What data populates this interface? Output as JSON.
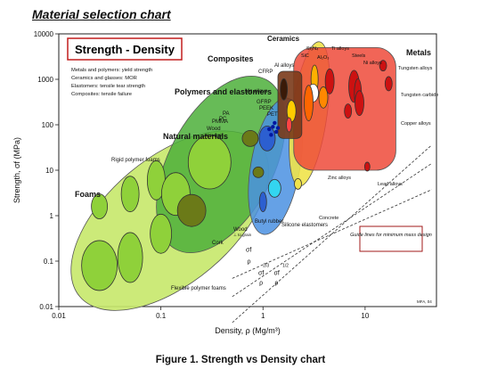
{
  "heading": "Material selection chart",
  "caption": "Figure 1. Strength vs Density chart",
  "colors": {
    "foams": "#c6e86a",
    "natural": "#4caf3a",
    "polymers": "#4a90e2",
    "composites": "#7a3a1a",
    "ceramics": "#f0e34a",
    "metals": "#ee4a3a",
    "ellipse_green": "#8fd13a",
    "ellipse_olive": "#6b7a18",
    "guide_callout_border": "#a01818"
  },
  "chart_data": {
    "type": "scatter",
    "title": "Strength - Density",
    "xlabel": "Density, ρ (Mg/m³)",
    "ylabel": "Strength, σf (MPa)",
    "xscale": "log",
    "yscale": "log",
    "xlim": [
      0.01,
      50
    ],
    "ylim": [
      0.01,
      10000
    ],
    "x_ticks": [
      "0.01",
      "0.1",
      "1",
      "10"
    ],
    "y_ticks": [
      "0.01",
      "0.1",
      "1",
      "10",
      "100",
      "1000",
      "10000"
    ],
    "legend_notes": [
      "Metals and polymers: yield strength",
      "Ceramics and glasses: MOR",
      "Elastomers: tensile tear strength",
      "Composites: tensile failure"
    ],
    "families": [
      {
        "name": "Foams",
        "density_range": [
          0.015,
          1.0
        ],
        "strength_range": [
          0.02,
          30
        ]
      },
      {
        "name": "Natural materials",
        "density_range": [
          0.1,
          1.5
        ],
        "strength_range": [
          0.3,
          600
        ]
      },
      {
        "name": "Polymers and elastomers",
        "density_range": [
          0.7,
          2.5
        ],
        "strength_range": [
          0.5,
          300
        ]
      },
      {
        "name": "Composites",
        "density_range": [
          1.4,
          2.4
        ],
        "strength_range": [
          50,
          1500
        ]
      },
      {
        "name": "Ceramics",
        "density_range": [
          1.8,
          4.5
        ],
        "strength_range": [
          5,
          6000
        ]
      },
      {
        "name": "Metals",
        "density_range": [
          2.0,
          20
        ],
        "strength_range": [
          10,
          5000
        ]
      }
    ],
    "labels": {
      "foams": "Foams",
      "rigid_polymer_foams": "Rigid polymer foams",
      "flexible_polymer_foams": "Flexible polymer foams",
      "cork": "Cork",
      "natural": "Natural materials",
      "wood_parallel": "Wood",
      "wood_parallel_sub": "// to grain",
      "wood_perp": "Wood",
      "wood_perp_sub": "⊥ to grain",
      "polymers": "Polymers and elastomers",
      "butyl_rubber": "Butyl rubber",
      "silicone": "Silicone elastomers",
      "pmma": "PMMA",
      "pa": "PA",
      "pc": "PC",
      "pet": "PET",
      "peek": "PEEK",
      "gfrp": "GFRP",
      "cfrp": "CFRP",
      "mg_alloys": "Mg alloys",
      "al_alloys": "Al alloys",
      "composites": "Composites",
      "ceramics": "Ceramics",
      "si3n4": "Si₃N₄",
      "sic": "SiC",
      "al2o3": "Al₂O₃",
      "ti_alloys": "Ti alloys",
      "steels": "Steels",
      "ni_alloys": "Ni alloys",
      "metals": "Metals",
      "tungsten_alloys": "Tungsten alloys",
      "tungsten_carbide": "Tungsten carbide",
      "copper_alloys": "Copper alloys",
      "zinc_alloys": "Zinc alloys",
      "lead_alloys": "Lead alloys",
      "concrete": "Concrete",
      "guide_lines": "Guide lines for minimum mass design",
      "mfa": "MFA, 04"
    },
    "guide_lines": [
      {
        "label": "σf/ρ",
        "slope": 1
      },
      {
        "label": "σf^2/3/ρ",
        "slope": 1.5
      },
      {
        "label": "σf^1/2/ρ",
        "slope": 2
      }
    ]
  }
}
